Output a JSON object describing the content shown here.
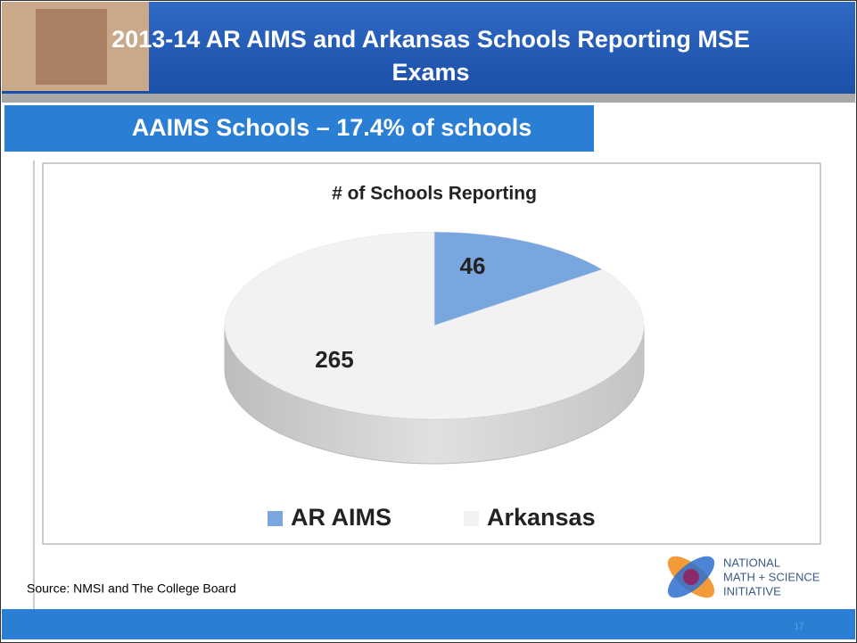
{
  "slide": {
    "title_line1": "2013-14 AR AIMS and Arkansas Schools Reporting MSE",
    "title_line2": "Exams",
    "subtitle": "AAIMS Schools – 17.4% of schools",
    "source": "Source: NMSI and The College Board",
    "logo": [
      "NATIONAL",
      "MATH + SCIENCE",
      "INITIATIVE"
    ],
    "page_number": "17"
  },
  "chart_data": {
    "type": "pie",
    "title": "# of Schools Reporting",
    "categories": [
      "AR AIMS",
      "Arkansas"
    ],
    "values": [
      46,
      265
    ],
    "colors": [
      "#7aa6e0",
      "#f2f2f2"
    ],
    "legend": "bottom"
  }
}
